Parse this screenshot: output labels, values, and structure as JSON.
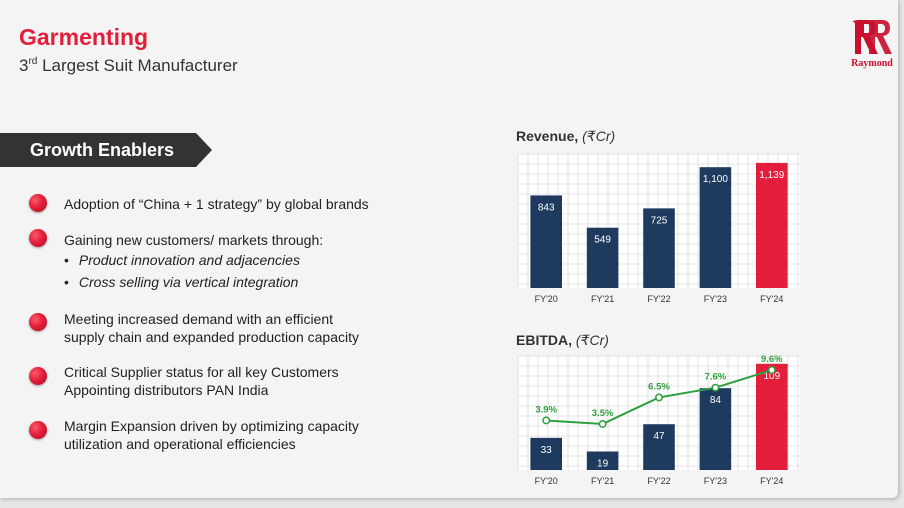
{
  "header": {
    "title": "Garmenting",
    "subtitle_ordinal": "3",
    "subtitle_suffix": "rd",
    "subtitle_rest": " Largest Suit Manufacturer",
    "logo_text": "Raymond"
  },
  "banner": {
    "label": "Growth Enablers"
  },
  "bullets": [
    {
      "lines": [
        "Adoption of “China + 1 strategy” by global brands"
      ]
    },
    {
      "lines": [
        "Gaining new customers/ markets through:"
      ],
      "sub": [
        "Product innovation and adjacencies",
        "Cross selling via vertical integration"
      ]
    },
    {
      "lines": [
        "Meeting increased demand with an efficient",
        "supply chain and expanded production capacity"
      ]
    },
    {
      "lines": [
        "Critical Supplier status for all key Customers",
        "Appointing distributors PAN India"
      ]
    },
    {
      "lines": [
        "Margin Expansion driven by optimizing capacity",
        "utilization and operational efficiencies"
      ]
    }
  ],
  "colors": {
    "accent": "#e31e3a",
    "navy": "#1f3a5f",
    "green": "#2e9e3e"
  },
  "chart_data": [
    {
      "type": "bar",
      "title": "Revenue, ",
      "title_unit": "(₹Cr)",
      "categories": [
        "FY'20",
        "FY'21",
        "FY'22",
        "FY'23",
        "FY'24"
      ],
      "values": [
        843,
        549,
        725,
        1100,
        1139
      ],
      "value_labels": [
        "843",
        "549",
        "725",
        "1,100",
        "1,139"
      ],
      "highlight_index": 4,
      "ylim": [
        0,
        1220
      ],
      "grid": true
    },
    {
      "type": "bar",
      "title": "EBITDA, ",
      "title_unit": "(₹Cr)",
      "categories": [
        "FY'20",
        "FY'21",
        "FY'22",
        "FY'23",
        "FY'24"
      ],
      "values": [
        33,
        19,
        47,
        84,
        109
      ],
      "value_labels": [
        "33",
        "19",
        "47",
        "84",
        "109"
      ],
      "highlight_index": 4,
      "ylim": [
        0,
        117
      ],
      "grid": true,
      "margin_series": {
        "type": "line",
        "values": [
          3.9,
          3.5,
          6.5,
          7.6,
          9.6
        ],
        "labels": [
          "3.9%",
          "3.5%",
          "6.5%",
          "7.6%",
          "9.6%"
        ]
      }
    }
  ]
}
